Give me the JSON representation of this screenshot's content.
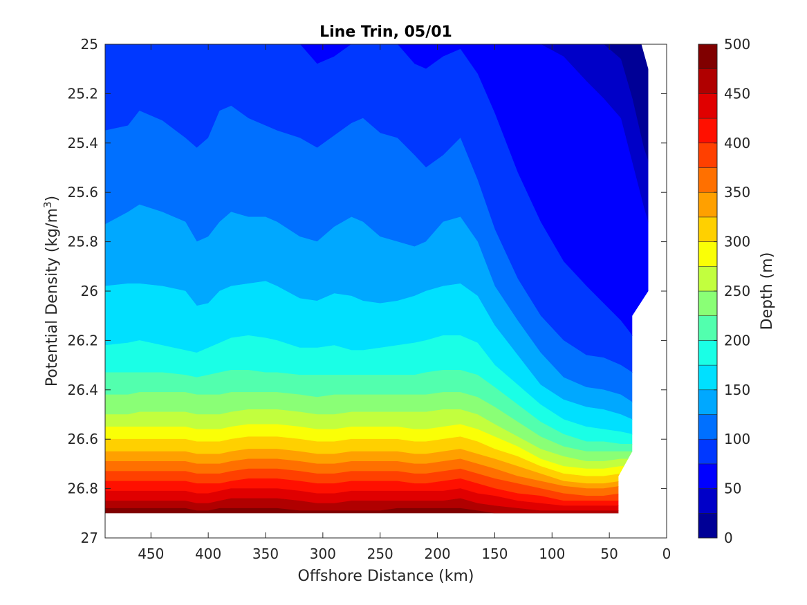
{
  "chart_data": {
    "type": "contourf",
    "title": "Line Trin, 05/01",
    "xlabel": "Offshore Distance (km)",
    "ylabel": "Potential Density (kg/m",
    "ylabel_superscript": "3",
    "ylabel_suffix": ")",
    "colorbar_label": "Depth (m)",
    "x_reversed": true,
    "y_reversed": true,
    "xlim": [
      0,
      490
    ],
    "ylim": [
      25,
      27
    ],
    "x_ticks": [
      450,
      400,
      350,
      300,
      250,
      200,
      150,
      100,
      50,
      0
    ],
    "x_tick_labels": [
      "450",
      "400",
      "350",
      "300",
      "250",
      "200",
      "150",
      "100",
      "50",
      "0"
    ],
    "y_ticks": [
      25,
      25.2,
      25.4,
      25.6,
      25.8,
      26,
      26.2,
      26.4,
      26.6,
      26.8,
      27
    ],
    "y_tick_labels": [
      "25",
      "25.2",
      "25.4",
      "25.6",
      "25.8",
      "26",
      "26.2",
      "26.4",
      "26.6",
      "26.8",
      "27"
    ],
    "colorbar_range": [
      0,
      500
    ],
    "colorbar_ticks": [
      0,
      50,
      100,
      150,
      200,
      250,
      300,
      350,
      400,
      450,
      500
    ],
    "colorbar_tick_labels": [
      "0",
      "50",
      "100",
      "150",
      "200",
      "250",
      "300",
      "350",
      "400",
      "450",
      "500"
    ],
    "contour_levels": [
      0,
      25,
      50,
      75,
      100,
      125,
      150,
      175,
      200,
      225,
      250,
      275,
      300,
      325,
      350,
      375,
      400,
      425,
      450,
      475,
      500
    ],
    "colormap": [
      "#000096",
      "#0000c8",
      "#0000ff",
      "#0038ff",
      "#0070ff",
      "#00a8ff",
      "#00e0ff",
      "#1affe6",
      "#52ffae",
      "#8aff76",
      "#c2ff3e",
      "#faff06",
      "#ffd000",
      "#ffa000",
      "#ff7000",
      "#ff4000",
      "#ff1000",
      "#e00000",
      "#b00000",
      "#800000"
    ],
    "x_grid": [
      490,
      470,
      460,
      440,
      420,
      410,
      400,
      390,
      380,
      365,
      350,
      340,
      320,
      305,
      290,
      275,
      265,
      250,
      235,
      220,
      210,
      195,
      180,
      165,
      150,
      130,
      110,
      90,
      70,
      55,
      40,
      30,
      20,
      10
    ],
    "isopycnals": [
      {
        "depth": 25,
        "sigma": [
          25.0,
          25.0,
          25.0,
          25.0,
          25.0,
          25.0,
          25.0,
          25.0,
          25.0,
          25.0,
          25.0,
          25.0,
          25.0,
          25.0,
          25.0,
          25.0,
          25.0,
          25.0,
          25.0,
          25.0,
          25.0,
          25.0,
          25.0,
          25.0,
          25.0,
          25.0,
          25.0,
          25.0,
          25.0,
          25.0,
          25.06,
          25.22,
          25.42,
          25.56
        ]
      },
      {
        "depth": 50,
        "sigma": [
          25.0,
          25.0,
          25.0,
          25.0,
          25.0,
          25.0,
          25.0,
          25.0,
          25.0,
          25.0,
          25.0,
          25.0,
          25.0,
          25.0,
          25.0,
          25.0,
          25.0,
          25.0,
          25.0,
          25.0,
          25.0,
          25.0,
          25.0,
          25.0,
          25.0,
          25.0,
          25.0,
          25.05,
          25.15,
          25.22,
          25.3,
          25.48,
          25.66,
          25.82
        ]
      },
      {
        "depth": 75,
        "sigma": [
          25.0,
          25.0,
          25.0,
          25.0,
          25.0,
          25.0,
          25.0,
          25.0,
          25.0,
          25.0,
          25.0,
          25.0,
          25.0,
          25.08,
          25.05,
          25.0,
          25.0,
          25.0,
          25.0,
          25.08,
          25.1,
          25.05,
          25.02,
          25.12,
          25.28,
          25.52,
          25.72,
          25.88,
          25.98,
          26.05,
          26.12,
          26.18,
          26.22,
          26.26
        ]
      },
      {
        "depth": 100,
        "sigma": [
          25.35,
          25.33,
          25.27,
          25.31,
          25.38,
          25.42,
          25.38,
          25.27,
          25.25,
          25.3,
          25.33,
          25.35,
          25.38,
          25.42,
          25.37,
          25.32,
          25.3,
          25.36,
          25.38,
          25.45,
          25.5,
          25.45,
          25.38,
          25.55,
          25.75,
          25.95,
          26.1,
          26.2,
          26.26,
          26.27,
          26.3,
          26.33,
          26.35,
          26.4
        ]
      },
      {
        "depth": 125,
        "sigma": [
          25.73,
          25.68,
          25.65,
          25.68,
          25.72,
          25.8,
          25.78,
          25.72,
          25.68,
          25.7,
          25.7,
          25.72,
          25.78,
          25.8,
          25.74,
          25.7,
          25.72,
          25.78,
          25.8,
          25.82,
          25.8,
          25.72,
          25.7,
          25.8,
          25.98,
          26.12,
          26.25,
          26.35,
          26.39,
          26.4,
          26.42,
          26.45,
          26.46,
          26.48
        ]
      },
      {
        "depth": 150,
        "sigma": [
          25.98,
          25.97,
          25.97,
          25.98,
          26.0,
          26.06,
          26.05,
          26.0,
          25.98,
          25.97,
          25.96,
          25.98,
          26.03,
          26.04,
          26.01,
          26.02,
          26.04,
          26.05,
          26.04,
          26.02,
          26.0,
          25.98,
          25.97,
          26.02,
          26.14,
          26.26,
          26.38,
          26.44,
          26.47,
          26.48,
          26.5,
          26.52,
          26.53,
          26.55
        ]
      },
      {
        "depth": 175,
        "sigma": [
          26.22,
          26.21,
          26.2,
          26.22,
          26.24,
          26.25,
          26.23,
          26.21,
          26.19,
          26.18,
          26.19,
          26.2,
          26.23,
          26.23,
          26.22,
          26.24,
          26.24,
          26.23,
          26.22,
          26.21,
          26.2,
          26.18,
          26.18,
          26.21,
          26.3,
          26.38,
          26.46,
          26.52,
          26.55,
          26.56,
          26.57,
          26.58,
          26.59,
          26.6
        ]
      },
      {
        "depth": 200,
        "sigma": [
          26.33,
          26.33,
          26.33,
          26.33,
          26.34,
          26.35,
          26.34,
          26.33,
          26.32,
          26.32,
          26.33,
          26.33,
          26.34,
          26.34,
          26.34,
          26.34,
          26.34,
          26.34,
          26.34,
          26.34,
          26.33,
          26.32,
          26.32,
          26.34,
          26.39,
          26.46,
          26.53,
          26.58,
          26.61,
          26.61,
          26.62,
          26.62,
          26.63,
          26.63
        ]
      },
      {
        "depth": 225,
        "sigma": [
          26.42,
          26.42,
          26.41,
          26.41,
          26.41,
          26.42,
          26.42,
          26.42,
          26.41,
          26.41,
          26.41,
          26.41,
          26.42,
          26.43,
          26.42,
          26.42,
          26.42,
          26.42,
          26.42,
          26.42,
          26.42,
          26.41,
          26.41,
          26.43,
          26.47,
          26.53,
          26.59,
          26.63,
          26.65,
          26.65,
          26.65,
          26.65,
          26.66,
          26.66
        ]
      },
      {
        "depth": 250,
        "sigma": [
          26.5,
          26.5,
          26.49,
          26.49,
          26.49,
          26.5,
          26.5,
          26.5,
          26.49,
          26.48,
          26.48,
          26.48,
          26.49,
          26.5,
          26.5,
          26.49,
          26.49,
          26.49,
          26.49,
          26.49,
          26.49,
          26.48,
          26.48,
          26.5,
          26.54,
          26.59,
          26.64,
          26.67,
          26.69,
          26.69,
          26.68,
          26.68,
          26.68,
          26.68
        ]
      },
      {
        "depth": 275,
        "sigma": [
          26.55,
          26.55,
          26.55,
          26.55,
          26.55,
          26.56,
          26.56,
          26.56,
          26.55,
          26.54,
          26.54,
          26.54,
          26.55,
          26.56,
          26.56,
          26.55,
          26.55,
          26.55,
          26.55,
          26.56,
          26.56,
          26.55,
          26.54,
          26.56,
          26.59,
          26.63,
          26.68,
          26.71,
          26.72,
          26.72,
          26.71,
          26.71,
          26.71,
          26.71
        ]
      },
      {
        "depth": 300,
        "sigma": [
          26.6,
          26.6,
          26.6,
          26.6,
          26.6,
          26.61,
          26.61,
          26.61,
          26.6,
          26.59,
          26.59,
          26.59,
          26.6,
          26.61,
          26.61,
          26.6,
          26.6,
          26.6,
          26.6,
          26.61,
          26.61,
          26.6,
          26.59,
          26.61,
          26.64,
          26.67,
          26.71,
          26.74,
          26.75,
          26.75,
          26.74,
          26.74,
          26.74,
          26.74
        ]
      },
      {
        "depth": 325,
        "sigma": [
          26.65,
          26.65,
          26.65,
          26.65,
          26.65,
          26.66,
          26.66,
          26.66,
          26.65,
          26.64,
          26.64,
          26.64,
          26.65,
          26.66,
          26.66,
          26.65,
          26.65,
          26.65,
          26.65,
          26.66,
          26.66,
          26.65,
          26.64,
          26.66,
          26.68,
          26.71,
          26.74,
          26.77,
          26.78,
          26.78,
          26.77,
          26.77,
          26.77,
          26.77
        ]
      },
      {
        "depth": 350,
        "sigma": [
          26.69,
          26.69,
          26.69,
          26.69,
          26.69,
          26.7,
          26.7,
          26.7,
          26.69,
          26.68,
          26.68,
          26.68,
          26.69,
          26.7,
          26.7,
          26.69,
          26.69,
          26.69,
          26.69,
          26.7,
          26.7,
          26.69,
          26.68,
          26.7,
          26.72,
          26.75,
          26.77,
          26.79,
          26.8,
          26.8,
          26.79,
          26.79,
          26.79,
          26.79
        ]
      },
      {
        "depth": 375,
        "sigma": [
          26.73,
          26.73,
          26.73,
          26.73,
          26.73,
          26.74,
          26.74,
          26.74,
          26.73,
          26.72,
          26.72,
          26.72,
          26.73,
          26.74,
          26.74,
          26.73,
          26.73,
          26.73,
          26.73,
          26.74,
          26.74,
          26.73,
          26.72,
          26.74,
          26.76,
          26.78,
          26.8,
          26.82,
          26.83,
          26.83,
          26.82,
          26.82,
          26.82,
          26.82
        ]
      },
      {
        "depth": 400,
        "sigma": [
          26.77,
          26.77,
          26.77,
          26.77,
          26.77,
          26.78,
          26.78,
          26.78,
          26.77,
          26.76,
          26.76,
          26.76,
          26.77,
          26.78,
          26.78,
          26.77,
          26.77,
          26.77,
          26.77,
          26.78,
          26.78,
          26.77,
          26.76,
          26.78,
          26.8,
          26.82,
          26.83,
          26.85,
          26.85,
          26.85,
          26.85,
          26.85,
          26.85,
          26.85
        ]
      },
      {
        "depth": 425,
        "sigma": [
          26.81,
          26.81,
          26.81,
          26.81,
          26.81,
          26.82,
          26.82,
          26.81,
          26.8,
          26.8,
          26.8,
          26.8,
          26.81,
          26.82,
          26.82,
          26.81,
          26.81,
          26.81,
          26.81,
          26.81,
          26.81,
          26.81,
          26.8,
          26.82,
          26.83,
          26.85,
          26.86,
          26.87,
          26.87,
          26.87,
          26.87,
          26.87,
          26.87,
          26.87
        ]
      },
      {
        "depth": 450,
        "sigma": [
          26.85,
          26.85,
          26.85,
          26.85,
          26.85,
          26.86,
          26.86,
          26.85,
          26.84,
          26.84,
          26.84,
          26.84,
          26.85,
          26.86,
          26.86,
          26.85,
          26.85,
          26.85,
          26.85,
          26.85,
          26.85,
          26.85,
          26.84,
          26.86,
          26.87,
          26.88,
          26.89,
          26.89,
          26.89,
          26.89,
          26.89,
          26.89,
          26.89,
          26.89
        ]
      },
      {
        "depth": 475,
        "sigma": [
          26.88,
          26.88,
          26.88,
          26.88,
          26.88,
          26.89,
          26.89,
          26.88,
          26.88,
          26.88,
          26.88,
          26.88,
          26.89,
          26.89,
          26.89,
          26.89,
          26.89,
          26.89,
          26.88,
          26.88,
          26.88,
          26.88,
          26.88,
          26.89,
          26.9,
          26.9,
          26.9,
          26.9,
          26.9,
          26.9,
          26.9,
          26.9,
          26.9,
          26.9
        ]
      }
    ],
    "data_bottom_sigma": 26.9,
    "data_right_edge": [
      {
        "x": 22,
        "sigma": 25.0
      },
      {
        "x": 16,
        "sigma": 25.1
      },
      {
        "x": 16,
        "sigma": 26.0
      },
      {
        "x": 30,
        "sigma": 26.1
      },
      {
        "x": 30,
        "sigma": 26.65
      },
      {
        "x": 42,
        "sigma": 26.75
      },
      {
        "x": 42,
        "sigma": 26.9
      }
    ]
  }
}
